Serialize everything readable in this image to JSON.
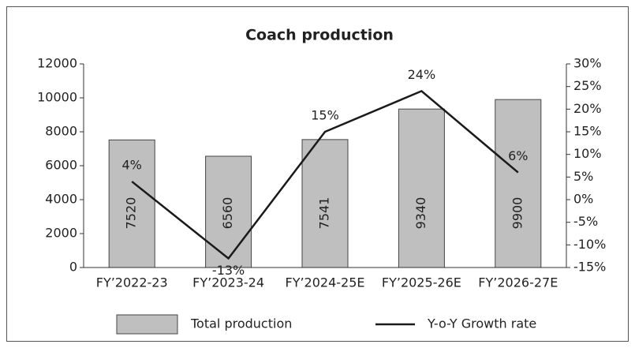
{
  "chart_data": {
    "type": "bar",
    "title": "Coach production",
    "categories": [
      "FY’2022-23",
      "FY’2023-24",
      "FY’2024-25E",
      "FY’2025-26E",
      "FY’2026-27E"
    ],
    "series": [
      {
        "name": "Total production",
        "type": "bar",
        "color": "#bfbfbf",
        "values": [
          7520,
          6560,
          7541,
          9340,
          9900
        ]
      },
      {
        "name": "Y-o-Y Growth rate",
        "type": "line",
        "axis": "y2",
        "color": "#1a1a1a",
        "values": [
          4,
          -13,
          15,
          24,
          6
        ],
        "value_labels": [
          "4%",
          "-13%",
          "15%",
          "24%",
          "6%"
        ]
      }
    ],
    "ylim": [
      0,
      12000
    ],
    "yticks": [
      0,
      2000,
      4000,
      6000,
      8000,
      10000,
      12000
    ],
    "y2lim": [
      -15,
      30
    ],
    "y2ticks": [
      {
        "value": -15,
        "label": "-15%"
      },
      {
        "value": -10,
        "label": "-10%"
      },
      {
        "value": -5,
        "label": "-5%"
      },
      {
        "value": 0,
        "label": "0%"
      },
      {
        "value": 5,
        "label": "5%"
      },
      {
        "value": 10,
        "label": "10%"
      },
      {
        "value": 15,
        "label": "15%"
      },
      {
        "value": 20,
        "label": "20%"
      },
      {
        "value": 25,
        "label": "25%"
      },
      {
        "value": 30,
        "label": "30%"
      }
    ],
    "grid": false
  }
}
